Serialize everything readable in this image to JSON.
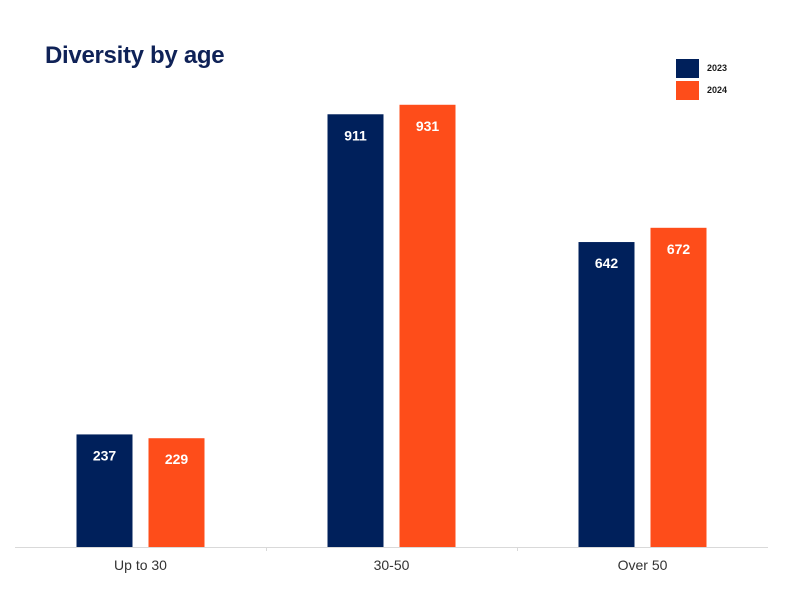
{
  "title": "Diversity by age",
  "colors": {
    "2023": "#00205b",
    "2024": "#fe4d1a",
    "title": "#0f2257",
    "axis": "#d9d9d9"
  },
  "chart_data": {
    "type": "bar",
    "title": "Diversity by age",
    "categories": [
      "Up to 30",
      "30-50",
      "Over 50"
    ],
    "series": [
      {
        "name": "2023",
        "color": "#00205b",
        "values": [
          237,
          911,
          642
        ]
      },
      {
        "name": "2024",
        "color": "#fe4d1a",
        "values": [
          229,
          931,
          672
        ]
      }
    ],
    "xlabel": "",
    "ylabel": "",
    "ylim": [
      0,
      1000
    ],
    "grid": false,
    "legend": "top-right",
    "data_labels": "inside-top"
  }
}
